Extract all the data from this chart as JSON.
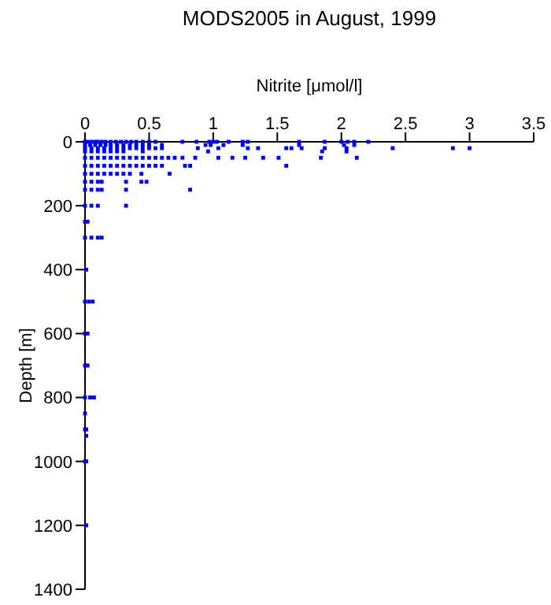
{
  "chart_data": {
    "type": "scatter",
    "title": "MODS2005 in August, 1999",
    "xlabel": "Nitrite [μmol/l]",
    "ylabel": "Depth [m]",
    "xlim": [
      0,
      3.5
    ],
    "xticks": [
      0,
      0.5,
      1,
      1.5,
      2,
      2.5,
      3,
      3.5
    ],
    "ylim": [
      1400,
      0
    ],
    "yticks": [
      0,
      200,
      400,
      600,
      800,
      1000,
      1200,
      1400
    ],
    "grid": false,
    "legend": false,
    "marker": "square",
    "series": [
      {
        "color": "#0000ff",
        "x": [
          0,
          0.02,
          0.05,
          0.08,
          0.1,
          0.13,
          0.16,
          0.2,
          0.24,
          0.28,
          0.32,
          0.36,
          0.4,
          0.45,
          0.5,
          0.55,
          0.76,
          0.87,
          0.97,
          1.0,
          1.03,
          1.12,
          1.23,
          1.27,
          1.67,
          1.87,
          2.0,
          2.05,
          2.1,
          2.21,
          0,
          0.04,
          0.08,
          0.12,
          0.16,
          0.2,
          0.25,
          0.3,
          0.35,
          0.4,
          0.45,
          0.5,
          0.6,
          0.94,
          0.98,
          1.08,
          1.23,
          1.67,
          2.02,
          2.1,
          0,
          0.05,
          0.1,
          0.15,
          0.2,
          0.25,
          0.3,
          0.35,
          0.4,
          0.45,
          0.5,
          0.55,
          0.6,
          0.88,
          1.04,
          1.27,
          1.35,
          1.57,
          1.61,
          1.69,
          1.87,
          2.04,
          2.4,
          2.87,
          3.0,
          0,
          0.05,
          0.1,
          0.15,
          0.2,
          0.25,
          0.3,
          0.45,
          0.96,
          1.85,
          2.04,
          0,
          0.05,
          0.1,
          0.15,
          0.2,
          0.25,
          0.3,
          0.35,
          0.4,
          0.45,
          0.5,
          0.55,
          0.6,
          0.65,
          0.7,
          0.76,
          0.86,
          1.04,
          1.15,
          1.25,
          1.39,
          1.51,
          1.84,
          2.12,
          0,
          0.05,
          0.1,
          0.15,
          0.2,
          0.25,
          0.3,
          0.35,
          0.4,
          0.45,
          0.5,
          0.55,
          0.6,
          0.78,
          0.82,
          1.57,
          0,
          0.05,
          0.1,
          0.15,
          0.2,
          0.25,
          0.3,
          0.35,
          0.44,
          0.66,
          0,
          0.05,
          0.1,
          0.13,
          0.32,
          0.44,
          0.48,
          0,
          0.05,
          0.1,
          0.13,
          0.32,
          0.82,
          0,
          0.05,
          0.1,
          0.32,
          0,
          0.02,
          0,
          0.05,
          0.1,
          0.13,
          0.01,
          0,
          0.03,
          0.06,
          0,
          0.02,
          0,
          0.02,
          0,
          0.04,
          0.07,
          0,
          0,
          0.01,
          0.01,
          0,
          0.01,
          0.01
        ],
        "values": [
          0,
          0,
          0,
          0,
          0,
          0,
          0,
          0,
          0,
          0,
          0,
          0,
          0,
          0,
          0,
          0,
          0,
          0,
          0,
          0,
          0,
          0,
          0,
          0,
          0,
          0,
          0,
          0,
          0,
          0,
          10,
          10,
          10,
          10,
          10,
          10,
          10,
          10,
          10,
          10,
          10,
          10,
          10,
          10,
          10,
          10,
          10,
          10,
          10,
          10,
          20,
          20,
          20,
          20,
          20,
          20,
          20,
          20,
          20,
          20,
          20,
          20,
          20,
          20,
          20,
          20,
          20,
          20,
          20,
          20,
          20,
          20,
          20,
          20,
          20,
          30,
          30,
          30,
          30,
          30,
          30,
          30,
          30,
          30,
          30,
          30,
          50,
          50,
          50,
          50,
          50,
          50,
          50,
          50,
          50,
          50,
          50,
          50,
          50,
          50,
          50,
          50,
          50,
          50,
          50,
          50,
          50,
          50,
          50,
          50,
          75,
          75,
          75,
          75,
          75,
          75,
          75,
          75,
          75,
          75,
          75,
          75,
          75,
          75,
          75,
          75,
          100,
          100,
          100,
          100,
          100,
          100,
          100,
          100,
          100,
          100,
          125,
          125,
          125,
          125,
          125,
          125,
          125,
          150,
          150,
          150,
          150,
          150,
          150,
          200,
          200,
          200,
          200,
          250,
          250,
          300,
          300,
          300,
          300,
          400,
          500,
          500,
          500,
          600,
          600,
          700,
          700,
          800,
          800,
          800,
          850,
          900,
          900,
          920,
          1000,
          1000,
          1200
        ]
      }
    ]
  }
}
